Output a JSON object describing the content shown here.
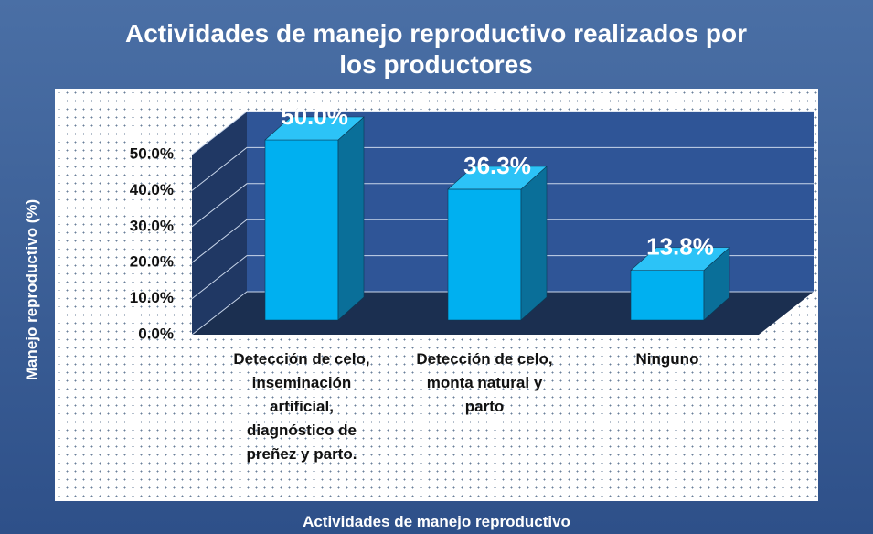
{
  "chart_data": {
    "type": "bar3d",
    "title": "Actividades de manejo reproductivo realizados por los  productores",
    "x_label": "Actividades de manejo reproductivo",
    "y_label": "Manejo reproductivo (%)",
    "categories": [
      "Detección de celo, inseminación artificial, diagnóstico de preñez y parto.",
      "Detección de celo, monta natural y parto",
      "Ninguno"
    ],
    "values": [
      50.0,
      36.3,
      13.8
    ],
    "value_labels": [
      "50.0%",
      "36.3%",
      "13.8%"
    ],
    "color": "#00b0f0",
    "ylim": [
      0,
      50
    ],
    "yticks": [
      {
        "value": 0,
        "label": "0.0%"
      },
      {
        "value": 10,
        "label": "10.0%"
      },
      {
        "value": 20,
        "label": "20.0%"
      },
      {
        "value": 30,
        "label": "30.0%"
      },
      {
        "value": 40,
        "label": "40.0%"
      },
      {
        "value": 50,
        "label": "50.0%"
      }
    ],
    "grid": true
  }
}
